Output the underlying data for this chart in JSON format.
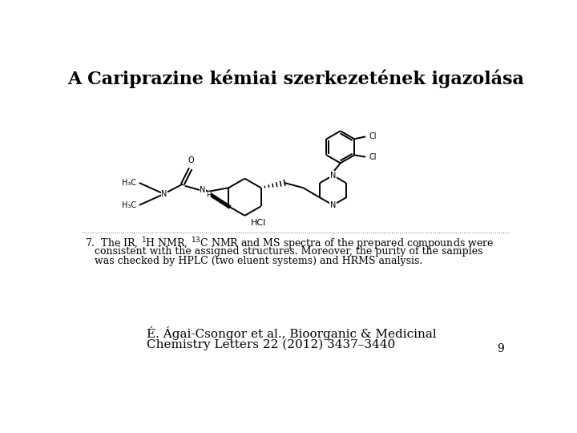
{
  "title": "A Cariprazine kémiai szerkezetének igazolása",
  "citation_line1": "É. Ágai-Csongor et al., Bioorganic & Medicinal",
  "citation_line2": "Chemistry Letters 22 (2012) 3437–3440",
  "page_number": "9",
  "background_color": "#ffffff",
  "text_color": "#000000",
  "title_fontsize": 16,
  "body_fontsize": 9,
  "citation_fontsize": 11
}
